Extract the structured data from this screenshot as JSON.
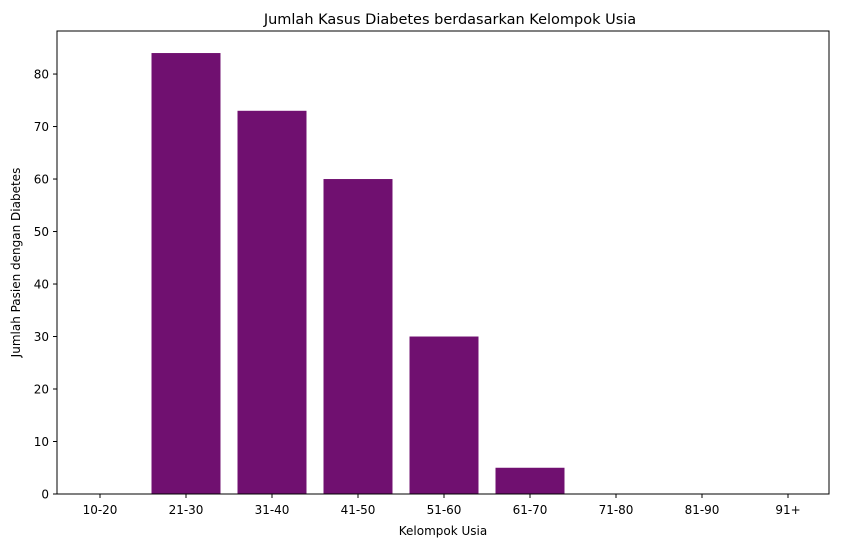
{
  "chart_data": {
    "type": "bar",
    "title": "Jumlah Kasus Diabetes berdasarkan Kelompok Usia",
    "xlabel": "Kelompok Usia",
    "ylabel": "Jumlah Pasien dengan Diabetes",
    "categories": [
      "10-20",
      "21-30",
      "31-40",
      "41-50",
      "51-60",
      "61-70",
      "71-80",
      "81-90",
      "91+"
    ],
    "values": [
      0,
      84,
      73,
      60,
      30,
      5,
      0,
      0,
      0
    ],
    "ylim": [
      0,
      88.2
    ],
    "yticks": [
      0,
      10,
      20,
      30,
      40,
      50,
      60,
      70,
      80
    ],
    "bar_color": "#701070",
    "grid": false,
    "legend": "none"
  }
}
